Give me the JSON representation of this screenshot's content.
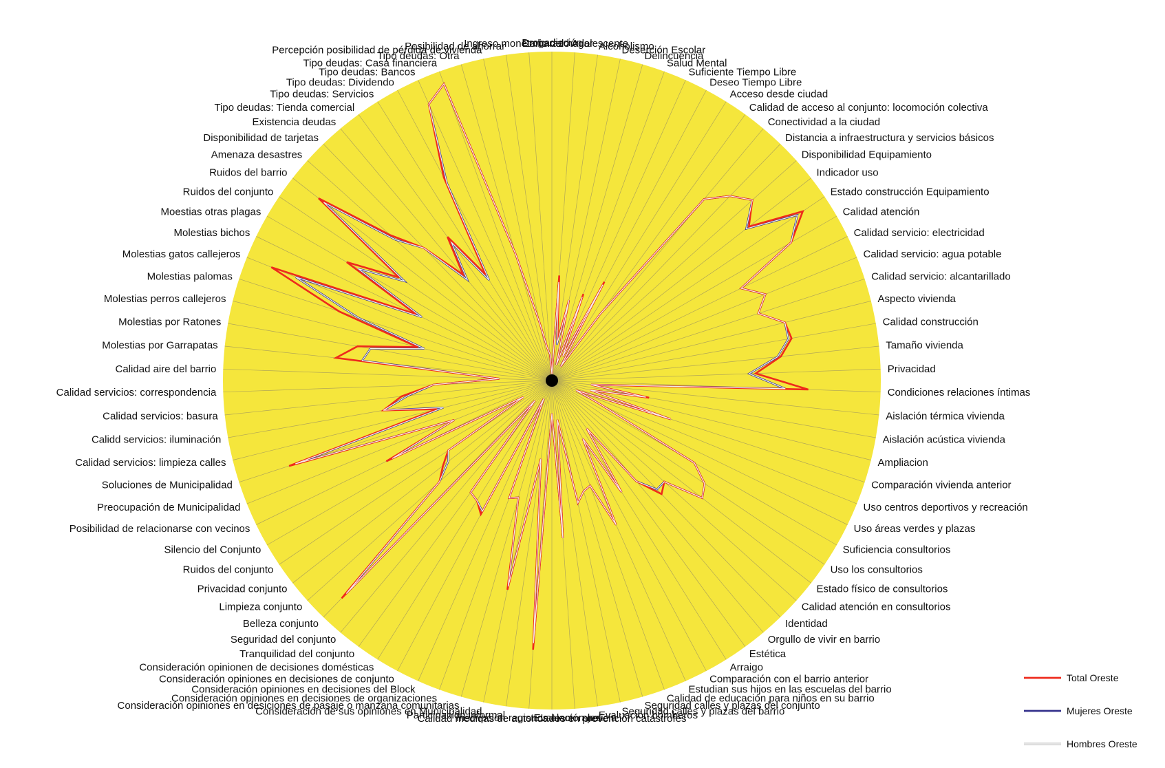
{
  "chart_data": {
    "type": "radar",
    "title": "",
    "range": [
      0,
      1
    ],
    "grid": true,
    "legend_position": "bottom-right",
    "background_color": "#f5e63c",
    "categories": [
      "Drogadicción",
      "Embarazo Adolescente",
      "Alcoholismo",
      "Deserción Escolar",
      "Delincuencia",
      "Salud Mental",
      "Suficiente Tiempo Libre",
      "Deseo Tiempo Libre",
      "Acceso desde ciudad",
      "Calidad de acceso al conjunto: locomoción colectiva",
      "Conectividad a la ciudad",
      "Distancia a infraestructura y servicios básicos",
      "Disponibilidad Equipamiento",
      "Indicador uso",
      "Estado construcción Equipamiento",
      "Calidad atención",
      "Calidad servicio: electricidad",
      "Calidad servicio: agua potable",
      "Calidad servicio: alcantarillado",
      "Aspecto vivienda",
      "Calidad construcción",
      "Tamaño vivienda",
      "Privacidad",
      "Condiciones relaciones íntimas",
      "Aislación térmica vivienda",
      "Aislación acústica vivienda",
      "Ampliacion",
      "Comparación vivienda anterior",
      "Uso centros deportivos y recreación",
      "Uso áreas verdes y plazas",
      "Suficiencia consultorios",
      "Uso los consultorios",
      "Estado físico de consultorios",
      "Calidad atención en consultorios",
      "Identidad",
      "Orgullo de vivir en barrio",
      "Estética",
      "Arraigo",
      "Comparación con el barrio anterior",
      "Estudian sus hijos en las escuelas del barrio",
      "Calidad de educación para niños en su barrio",
      "Seguridad calles y plazas del conjunto",
      "Seguridad calles y plazas del barrio",
      "Evaluación bomberos",
      "Evaluación policía",
      "Calidad medidas de autoridades en prevención catástrofes",
      "Inscripción registros electorales",
      "Participación informal",
      "Consideración de sus opiniones en Municipalidad",
      "Consideración opiniones en desiciones de pasaje o manzana comunitarias",
      "Consideración opiniones en decisiones de organizaciones",
      "Consideración opiniones en decisiones del Block",
      "Consideración opiniones en decisiones de conjunto",
      "Consideración opinionen de decisiones domésticas",
      "Tranquilidad del conjunto",
      "Seguridad del conjunto",
      "Belleza conjunto",
      "Limpieza conjunto",
      "Privacidad conjunto",
      "Ruidos del conjunto",
      "Silencio del Conjunto",
      "Posibilidad de relacionarse con vecinos",
      "Preocupación de Municipalidad",
      "Soluciones de Municipalidad",
      "Calidad servicios: limpieza calles",
      "Calidd servicios: iluminación",
      "Calidad servicios: basura",
      "Calidad servicios: correspondencia",
      "Calidad aire del barrio",
      "Molestias por Garrapatas",
      "Molestias por Ratones",
      "Molestias perros callejeros",
      "Molestias palomas",
      "Molestias gatos callejeros",
      "Molestias bichos",
      "Moestias otras plagas",
      "Ruidos del conjunto",
      "Ruidos del barrio",
      "Amenaza desastres",
      "Disponibilidad de tarjetas",
      "Existencia deudas",
      "Tipo deudas: Tienda comercial",
      "Tipo deudas: Servicios",
      "Tipo deudas: Dividendo",
      "Tipo deudas: Bancos",
      "Tipo deudas: Casa financiera",
      "Tipo deudas: Otra",
      "Percepción posibilidad de pérdida de vivienda",
      "Posibilidad de ahorrar",
      "Ingreso monetario del hogar"
    ],
    "series": [
      {
        "name": "Total Oreste",
        "color": "#ee2a1c",
        "width": 2.6,
        "values": [
          0.02,
          0.32,
          0.12,
          0.25,
          0.05,
          0.28,
          0.08,
          0.34,
          0.05,
          0.25,
          0.72,
          0.78,
          0.82,
          0.76,
          0.92,
          0.84,
          0.64,
          0.7,
          0.66,
          0.73,
          0.74,
          0.7,
          0.62,
          0.78,
          0.12,
          0.3,
          0.12,
          0.38,
          0.08,
          0.16,
          0.5,
          0.56,
          0.58,
          0.46,
          0.48,
          0.4,
          0.18,
          0.4,
          0.2,
          0.48,
          0.34,
          0.35,
          0.38,
          0.12,
          0.48,
          0.1,
          0.82,
          0.24,
          0.65,
          0.37,
          0.38,
          0.06,
          0.46,
          0.43,
          0.42,
          0.08,
          0.92,
          0.46,
          0.42,
          0.38,
          0.1,
          0.56,
          0.32,
          0.84,
          0.36,
          0.52,
          0.46,
          0.36,
          0.16,
          0.66,
          0.6,
          0.42,
          0.68,
          0.92,
          0.46,
          0.72,
          0.56,
          0.9,
          0.66,
          0.56,
          0.42,
          0.54,
          0.38,
          0.7,
          0.92,
          0.96,
          0.4,
          0.18,
          0.1,
          0.08
        ]
      },
      {
        "name": "Mujeres Oreste",
        "color": "#34318c",
        "width": 2.6,
        "values": [
          0.02,
          0.3,
          0.11,
          0.25,
          0.05,
          0.27,
          0.08,
          0.33,
          0.05,
          0.25,
          0.72,
          0.78,
          0.82,
          0.75,
          0.9,
          0.84,
          0.64,
          0.7,
          0.66,
          0.73,
          0.73,
          0.69,
          0.6,
          0.71,
          0.12,
          0.29,
          0.12,
          0.38,
          0.08,
          0.16,
          0.5,
          0.56,
          0.58,
          0.46,
          0.46,
          0.4,
          0.18,
          0.4,
          0.2,
          0.48,
          0.34,
          0.35,
          0.38,
          0.12,
          0.48,
          0.1,
          0.8,
          0.24,
          0.64,
          0.37,
          0.38,
          0.06,
          0.45,
          0.43,
          0.42,
          0.08,
          0.9,
          0.46,
          0.4,
          0.38,
          0.1,
          0.54,
          0.32,
          0.82,
          0.34,
          0.52,
          0.44,
          0.36,
          0.16,
          0.58,
          0.56,
          0.4,
          0.62,
          0.84,
          0.44,
          0.68,
          0.54,
          0.88,
          0.64,
          0.56,
          0.4,
          0.52,
          0.36,
          0.68,
          0.92,
          0.96,
          0.4,
          0.18,
          0.1,
          0.08
        ]
      },
      {
        "name": "Hombres Oreste",
        "color": "#f2f2f2",
        "width": 1.2,
        "values": [
          0.02,
          0.3,
          0.11,
          0.25,
          0.05,
          0.27,
          0.08,
          0.33,
          0.05,
          0.25,
          0.72,
          0.78,
          0.82,
          0.75,
          0.9,
          0.84,
          0.64,
          0.7,
          0.66,
          0.73,
          0.73,
          0.69,
          0.6,
          0.71,
          0.12,
          0.29,
          0.12,
          0.38,
          0.08,
          0.16,
          0.5,
          0.56,
          0.58,
          0.46,
          0.46,
          0.4,
          0.18,
          0.4,
          0.2,
          0.48,
          0.34,
          0.35,
          0.38,
          0.12,
          0.48,
          0.1,
          0.8,
          0.24,
          0.64,
          0.37,
          0.38,
          0.06,
          0.45,
          0.43,
          0.42,
          0.08,
          0.9,
          0.46,
          0.4,
          0.38,
          0.1,
          0.54,
          0.32,
          0.82,
          0.34,
          0.52,
          0.44,
          0.36,
          0.16,
          0.58,
          0.56,
          0.4,
          0.62,
          0.84,
          0.44,
          0.68,
          0.54,
          0.88,
          0.64,
          0.56,
          0.4,
          0.52,
          0.36,
          0.68,
          0.92,
          0.96,
          0.4,
          0.18,
          0.1,
          0.08
        ]
      }
    ]
  }
}
